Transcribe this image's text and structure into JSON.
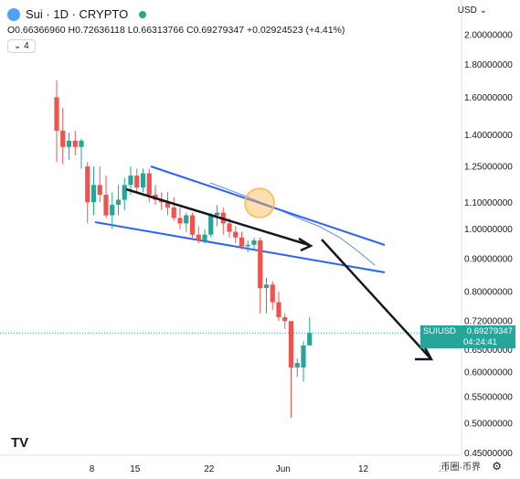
{
  "header": {
    "title": "Sui · 1D · CRYPTO",
    "ohlc": "O0.66366960 H0.72636118 L0.66313766 C0.69279347 +0.02924523 (+4.41%)",
    "indicator_toggle": "⌄ 4",
    "currency": "USD ⌄"
  },
  "price_tag": {
    "symbol": "SUIUSD",
    "price": "0.69279347",
    "countdown": "04:24:41"
  },
  "watermark": "币圈·币界",
  "colors": {
    "up": "#26a69a",
    "down": "#ef5350",
    "channel": "#2962ff",
    "ma": "#5b8dee",
    "arrow": "#131722",
    "highlight": "#ffb74d"
  },
  "chart_data": {
    "type": "candlestick",
    "title": "Sui · 1D · CRYPTO",
    "y_axis": {
      "scale": "log",
      "range": [
        0.45,
        2.1
      ],
      "ticks": [
        "2.00000000",
        "1.80000000",
        "1.60000000",
        "1.40000000",
        "1.25000000",
        "1.10000000",
        "1.00000000",
        "0.90000000",
        "0.80000000",
        "0.72000000",
        "0.65000000",
        "0.60000000",
        "0.55000000",
        "0.50000000",
        "0.45000000"
      ]
    },
    "x_axis": {
      "ticks": [
        "8",
        "15",
        "22",
        "Jun",
        "12",
        "21"
      ]
    },
    "candles": [
      {
        "o": 1.6,
        "h": 1.7,
        "l": 1.27,
        "c": 1.42
      },
      {
        "o": 1.42,
        "h": 1.54,
        "l": 1.26,
        "c": 1.34
      },
      {
        "o": 1.34,
        "h": 1.41,
        "l": 1.28,
        "c": 1.37
      },
      {
        "o": 1.37,
        "h": 1.42,
        "l": 1.3,
        "c": 1.34
      },
      {
        "o": 1.34,
        "h": 1.38,
        "l": 1.24,
        "c": 1.37
      },
      {
        "o": 1.25,
        "h": 1.27,
        "l": 1.02,
        "c": 1.1
      },
      {
        "o": 1.1,
        "h": 1.25,
        "l": 1.05,
        "c": 1.17
      },
      {
        "o": 1.17,
        "h": 1.25,
        "l": 1.1,
        "c": 1.13
      },
      {
        "o": 1.13,
        "h": 1.21,
        "l": 1.04,
        "c": 1.05
      },
      {
        "o": 1.05,
        "h": 1.14,
        "l": 1.0,
        "c": 1.09
      },
      {
        "o": 1.09,
        "h": 1.17,
        "l": 1.05,
        "c": 1.11
      },
      {
        "o": 1.11,
        "h": 1.2,
        "l": 1.07,
        "c": 1.17
      },
      {
        "o": 1.17,
        "h": 1.25,
        "l": 1.13,
        "c": 1.21
      },
      {
        "o": 1.21,
        "h": 1.24,
        "l": 1.14,
        "c": 1.16
      },
      {
        "o": 1.16,
        "h": 1.24,
        "l": 1.14,
        "c": 1.22
      },
      {
        "o": 1.22,
        "h": 1.24,
        "l": 1.1,
        "c": 1.13
      },
      {
        "o": 1.13,
        "h": 1.17,
        "l": 1.09,
        "c": 1.11
      },
      {
        "o": 1.11,
        "h": 1.14,
        "l": 1.07,
        "c": 1.1
      },
      {
        "o": 1.1,
        "h": 1.14,
        "l": 1.05,
        "c": 1.08
      },
      {
        "o": 1.08,
        "h": 1.12,
        "l": 1.03,
        "c": 1.04
      },
      {
        "o": 1.04,
        "h": 1.08,
        "l": 1.0,
        "c": 1.02
      },
      {
        "o": 1.02,
        "h": 1.06,
        "l": 0.99,
        "c": 1.05
      },
      {
        "o": 1.05,
        "h": 1.06,
        "l": 0.97,
        "c": 0.98
      },
      {
        "o": 0.98,
        "h": 1.01,
        "l": 0.95,
        "c": 0.96
      },
      {
        "o": 0.96,
        "h": 1.0,
        "l": 0.95,
        "c": 0.98
      },
      {
        "o": 0.98,
        "h": 1.06,
        "l": 0.97,
        "c": 1.05
      },
      {
        "o": 1.05,
        "h": 1.09,
        "l": 1.01,
        "c": 1.06
      },
      {
        "o": 1.06,
        "h": 1.08,
        "l": 0.98,
        "c": 1.02
      },
      {
        "o": 1.02,
        "h": 1.04,
        "l": 0.97,
        "c": 0.99
      },
      {
        "o": 0.99,
        "h": 1.01,
        "l": 0.95,
        "c": 0.97
      },
      {
        "o": 0.97,
        "h": 0.99,
        "l": 0.93,
        "c": 0.94
      },
      {
        "o": 0.94,
        "h": 0.96,
        "l": 0.92,
        "c": 0.945
      },
      {
        "o": 0.945,
        "h": 0.97,
        "l": 0.93,
        "c": 0.96
      },
      {
        "o": 0.96,
        "h": 0.97,
        "l": 0.74,
        "c": 0.81
      },
      {
        "o": 0.81,
        "h": 0.84,
        "l": 0.74,
        "c": 0.82
      },
      {
        "o": 0.82,
        "h": 0.83,
        "l": 0.75,
        "c": 0.77
      },
      {
        "o": 0.77,
        "h": 0.8,
        "l": 0.72,
        "c": 0.73
      },
      {
        "o": 0.73,
        "h": 0.74,
        "l": 0.7,
        "c": 0.72
      },
      {
        "o": 0.72,
        "h": 0.72,
        "l": 0.51,
        "c": 0.61
      },
      {
        "o": 0.61,
        "h": 0.63,
        "l": 0.59,
        "c": 0.62
      },
      {
        "o": 0.61,
        "h": 0.67,
        "l": 0.58,
        "c": 0.66
      },
      {
        "o": 0.66,
        "h": 0.73,
        "l": 0.66,
        "c": 0.69
      }
    ]
  }
}
